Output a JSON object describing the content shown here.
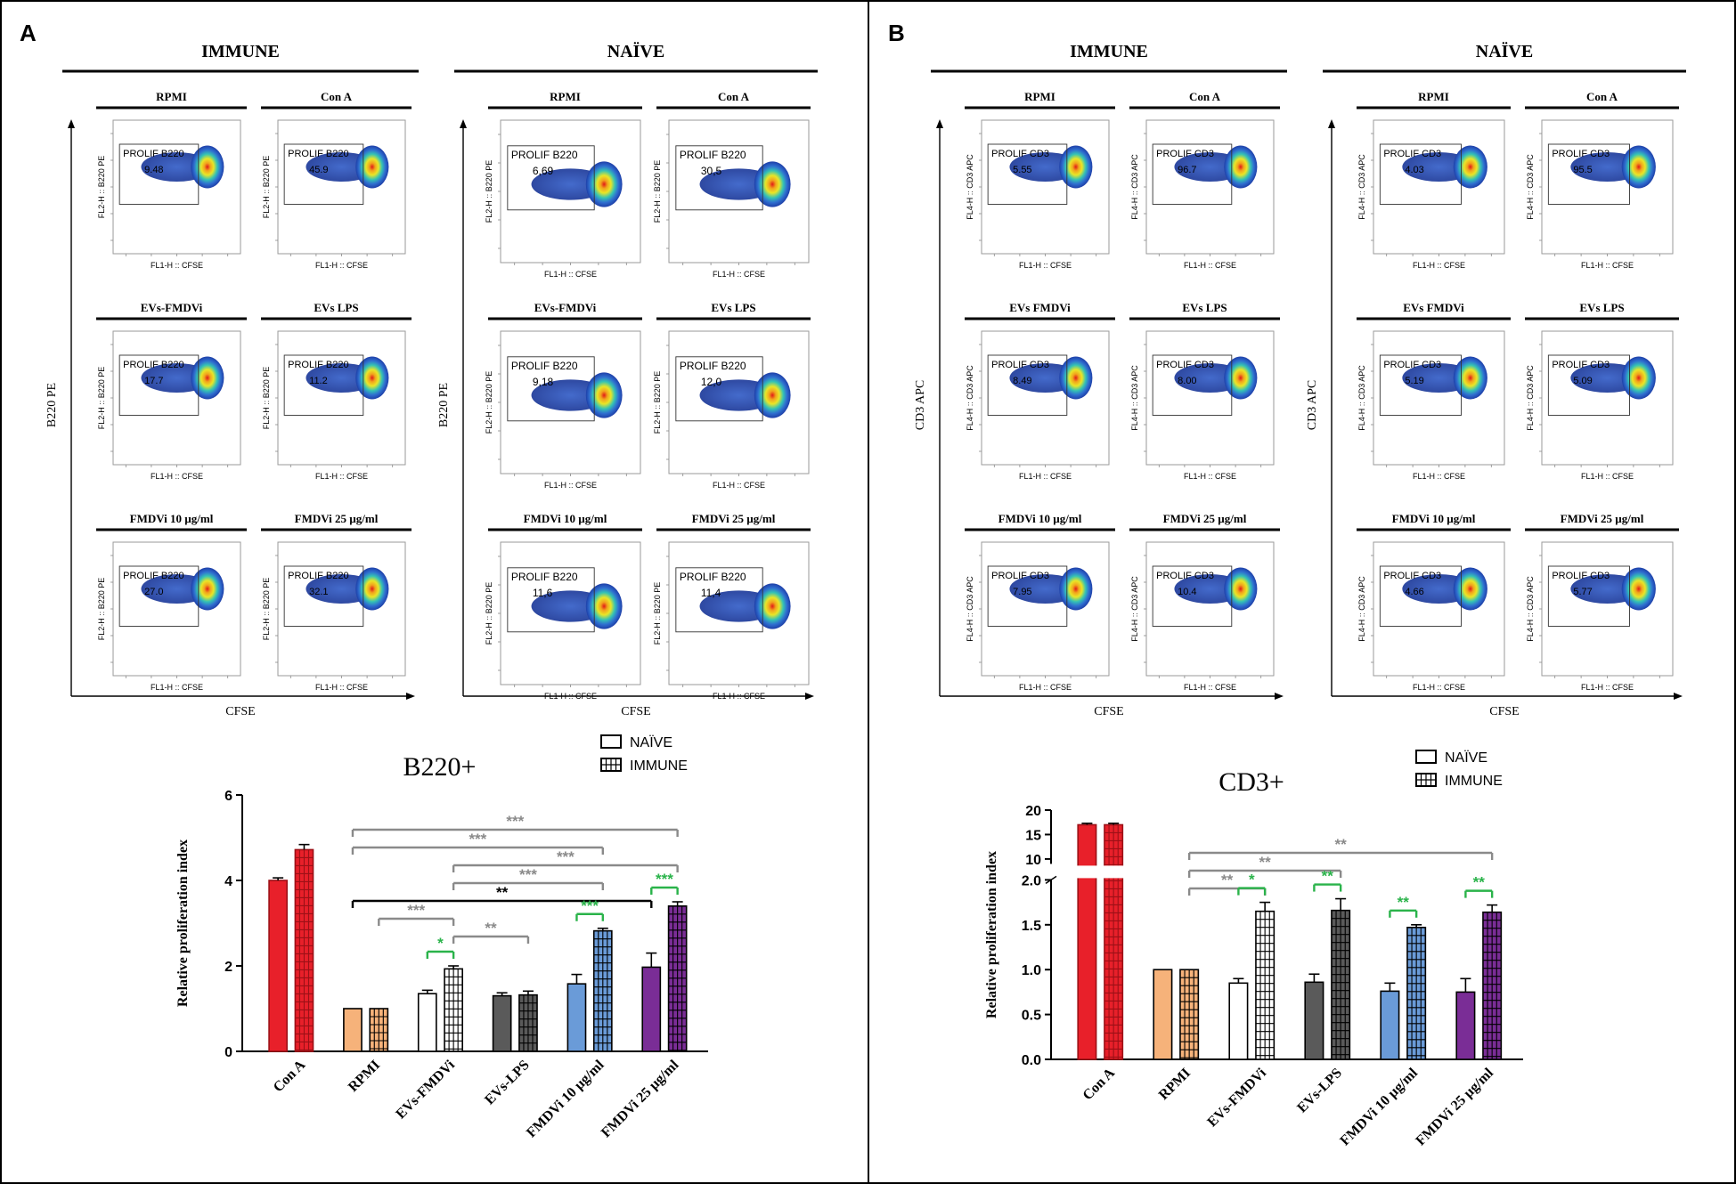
{
  "panels": [
    {
      "letter": "A",
      "groups": [
        "IMMUNE",
        "NAÏVE"
      ],
      "axis_label_y": "B220 PE",
      "axis_label_x": "CFSE",
      "immune_plots": [
        {
          "title": "RPMI",
          "gate_label": "PROLIF B220",
          "value": "9.48",
          "ylabel": "FL2-H :: B220 PE",
          "xlabel": "FL1-H :: CFSE"
        },
        {
          "title": "Con A",
          "gate_label": "PROLIF B220",
          "value": "45.9",
          "ylabel": "FL2-H :: B220 PE",
          "xlabel": "FL1-H :: CFSE"
        },
        {
          "title": "EVs-FMDVi",
          "gate_label": "PROLIF B220",
          "value": "17.7",
          "ylabel": "FL2-H :: B220 PE",
          "xlabel": "FL1-H :: CFSE"
        },
        {
          "title": "EVs LPS",
          "gate_label": "PROLIF B220",
          "value": "11.2",
          "ylabel": "FL2-H :: B220 PE",
          "xlabel": "FL1-H :: CFSE"
        },
        {
          "title": "FMDVi 10  µg/ml",
          "gate_label": "PROLIF B220",
          "value": "27.0",
          "ylabel": "FL2-H :: B220 PE",
          "xlabel": "FL1-H :: CFSE"
        },
        {
          "title": "FMDVi 25 µg/ml",
          "gate_label": "PROLIF B220",
          "value": "32.1",
          "ylabel": "FL2-H :: B220 PE",
          "xlabel": "FL1-H :: CFSE"
        }
      ],
      "naive_plots": [
        {
          "title": "RPMI",
          "gate_label": "PROLIF B220",
          "value": "6,69",
          "ylabel": "FL2-H :: B220 PE",
          "xlabel": "FL1-H :: CFSE"
        },
        {
          "title": "Con A",
          "gate_label": "PROLIF B220",
          "value": "30,5",
          "ylabel": "FL2-H :: B220 PE",
          "xlabel": "FL1-H :: CFSE"
        },
        {
          "title": "EVs-FMDVi",
          "gate_label": "PROLIF B220",
          "value": "9,18",
          "ylabel": "FL2-H :: B220 PE",
          "xlabel": "FL1-H :: CFSE"
        },
        {
          "title": "EVs LPS",
          "gate_label": "PROLIF B220",
          "value": "12,0",
          "ylabel": "FL2-H :: B220 PE",
          "xlabel": "FL1-H :: CFSE"
        },
        {
          "title": "FMDVi 10  µg/ml",
          "gate_label": "PROLIF B220",
          "value": "11,6",
          "ylabel": "FL2-H :: B220 PE",
          "xlabel": "FL1-H :: CFSE"
        },
        {
          "title": "FMDVi 25 µg/ml",
          "gate_label": "PROLIF B220",
          "value": "11,4",
          "ylabel": "FL2-H :: B220 PE",
          "xlabel": "FL1-H :: CFSE"
        }
      ]
    },
    {
      "letter": "B",
      "groups": [
        "IMMUNE",
        "NAÏVE"
      ],
      "axis_label_y": "CD3 APC",
      "axis_label_x": "CFSE",
      "immune_plots": [
        {
          "title": "RPMI",
          "gate_label": "PROLIF CD3",
          "value": "5.55",
          "ylabel": "FL4-H :: CD3 APC",
          "xlabel": "FL1-H :: CFSE"
        },
        {
          "title": "Con A",
          "gate_label": "PROLIF CD3",
          "value": "96.7",
          "ylabel": "FL4-H :: CD3 APC",
          "xlabel": "FL1-H :: CFSE"
        },
        {
          "title": "EVs FMDVi",
          "gate_label": "PROLIF CD3",
          "value": "8.49",
          "ylabel": "FL4-H :: CD3 APC",
          "xlabel": "FL1-H :: CFSE"
        },
        {
          "title": "EVs LPS",
          "gate_label": "PROLIF CD3",
          "value": "8.00",
          "ylabel": "FL4-H :: CD3 APC",
          "xlabel": "FL1-H :: CFSE"
        },
        {
          "title": "FMDVi 10  µg/ml",
          "gate_label": "PROLIF CD3",
          "value": "7.95",
          "ylabel": "FL4-H :: CD3 APC",
          "xlabel": "FL1-H :: CFSE"
        },
        {
          "title": "FMDVi 25  µg/ml",
          "gate_label": "PROLIF CD3",
          "value": "10.4",
          "ylabel": "FL4-H :: CD3 APC",
          "xlabel": "FL1-H :: CFSE"
        }
      ],
      "naive_plots": [
        {
          "title": "RPMI",
          "gate_label": "PROLIF CD3",
          "value": "4.03",
          "ylabel": "FL4-H :: CD3 APC",
          "xlabel": "FL1-H :: CFSE"
        },
        {
          "title": "Con A",
          "gate_label": "PROLIF CD3",
          "value": "95.5",
          "ylabel": "FL4-H :: CD3 APC",
          "xlabel": "FL1-H :: CFSE"
        },
        {
          "title": "EVs FMDVi",
          "gate_label": "PROLIF CD3",
          "value": "5.19",
          "ylabel": "FL4-H :: CD3 APC",
          "xlabel": "FL1-H :: CFSE"
        },
        {
          "title": "EVs LPS",
          "gate_label": "PROLIF CD3",
          "value": "5.09",
          "ylabel": "FL4-H :: CD3 APC",
          "xlabel": "FL1-H :: CFSE"
        },
        {
          "title": "FMDVi 10  µg/ml",
          "gate_label": "PROLIF CD3",
          "value": "4.66",
          "ylabel": "FL4-H :: CD3 APC",
          "xlabel": "FL1-H :: CFSE"
        },
        {
          "title": "FMDVi 25  µg/ml",
          "gate_label": "PROLIF CD3",
          "value": "5.77",
          "ylabel": "FL4-H :: CD3 APC",
          "xlabel": "FL1-H :: CFSE"
        }
      ]
    }
  ],
  "chart_data": [
    {
      "type": "bar",
      "title": "B220+",
      "ylabel": "Relative proliferation index",
      "ylim": [
        0,
        6
      ],
      "yticks": [
        "0",
        "2",
        "4",
        "6"
      ],
      "categories": [
        "Con A",
        "RPMI",
        "EVs-FMDVi",
        "EVs-LPS",
        "FMDVi 10 µg/ml",
        "FMDVi 25 µg/ml"
      ],
      "category_colors": [
        "#e8202a",
        "#f6b27a",
        "#ffffff",
        "#5a5a5a",
        "#6a9bd8",
        "#7a2d96"
      ],
      "series": [
        {
          "name": "NAÏVE",
          "pattern": "solid",
          "values": [
            4.0,
            1.0,
            1.35,
            1.3,
            1.58,
            1.97
          ],
          "errors": [
            0.06,
            0.0,
            0.08,
            0.07,
            0.22,
            0.33
          ]
        },
        {
          "name": "IMMUNE",
          "pattern": "checkered",
          "values": [
            4.72,
            1.0,
            1.93,
            1.32,
            2.82,
            3.4
          ],
          "errors": [
            0.12,
            0.0,
            0.07,
            0.09,
            0.06,
            0.1
          ]
        }
      ],
      "significance": [
        {
          "label": "***",
          "color": "#8a8a8a",
          "from": [
            1,
            0
          ],
          "to": [
            5,
            1
          ]
        },
        {
          "label": "***",
          "color": "#8a8a8a",
          "from": [
            1,
            0
          ],
          "to": [
            4,
            1
          ]
        },
        {
          "label": "***",
          "color": "#8a8a8a",
          "from": [
            2,
            1
          ],
          "to": [
            5,
            1
          ]
        },
        {
          "label": "***",
          "color": "#8a8a8a",
          "from": [
            2,
            1
          ],
          "to": [
            4,
            1
          ]
        },
        {
          "label": "**",
          "color": "#000000",
          "from": [
            1,
            0
          ],
          "to": [
            5,
            0
          ]
        },
        {
          "label": "***",
          "color": "#8a8a8a",
          "from": [
            1,
            1
          ],
          "to": [
            2,
            1
          ]
        },
        {
          "label": "**",
          "color": "#8a8a8a",
          "from": [
            2,
            1
          ],
          "to": [
            3,
            1
          ]
        },
        {
          "label": "*",
          "color": "#2ab34a",
          "from": [
            2,
            0
          ],
          "to": [
            2,
            1
          ]
        },
        {
          "label": "***",
          "color": "#2ab34a",
          "from": [
            4,
            0
          ],
          "to": [
            4,
            1
          ]
        },
        {
          "label": "***",
          "color": "#2ab34a",
          "from": [
            5,
            0
          ],
          "to": [
            5,
            1
          ]
        }
      ]
    },
    {
      "type": "bar",
      "title": "CD3+",
      "ylabel": "Relative proliferation index",
      "ylim": [
        0,
        20
      ],
      "axis_break": [
        2.0,
        9.0
      ],
      "yticks": [
        "0.0",
        "0.5",
        "1.0",
        "1.5",
        "2.0",
        "10",
        "15",
        "20"
      ],
      "categories": [
        "Con A",
        "RPMI",
        "EVs-FMDVi",
        "EVs-LPS",
        "FMDVi 10 µg/ml",
        "FMDVi 25 µg/ml"
      ],
      "category_colors": [
        "#e8202a",
        "#f6b27a",
        "#ffffff",
        "#5a5a5a",
        "#6a9bd8",
        "#7a2d96"
      ],
      "series": [
        {
          "name": "NAÏVE",
          "pattern": "solid",
          "values": [
            17.0,
            1.0,
            0.85,
            0.86,
            0.76,
            0.75
          ],
          "errors": [
            0.3,
            0.0,
            0.05,
            0.09,
            0.09,
            0.15
          ]
        },
        {
          "name": "IMMUNE",
          "pattern": "checkered",
          "values": [
            17.0,
            1.0,
            1.65,
            1.66,
            1.47,
            1.64
          ],
          "errors": [
            0.3,
            0.0,
            0.1,
            0.13,
            0.03,
            0.08
          ]
        }
      ],
      "significance": [
        {
          "label": "**",
          "color": "#8a8a8a",
          "from": [
            1,
            1
          ],
          "to": [
            5,
            1
          ]
        },
        {
          "label": "**",
          "color": "#8a8a8a",
          "from": [
            1,
            1
          ],
          "to": [
            3,
            1
          ]
        },
        {
          "label": "**",
          "color": "#8a8a8a",
          "from": [
            1,
            1
          ],
          "to": [
            2,
            1
          ]
        },
        {
          "label": "*",
          "color": "#2ab34a",
          "from": [
            2,
            0
          ],
          "to": [
            2,
            1
          ]
        },
        {
          "label": "**",
          "color": "#2ab34a",
          "from": [
            3,
            0
          ],
          "to": [
            3,
            1
          ]
        },
        {
          "label": "**",
          "color": "#2ab34a",
          "from": [
            4,
            0
          ],
          "to": [
            4,
            1
          ]
        },
        {
          "label": "**",
          "color": "#2ab34a",
          "from": [
            5,
            0
          ],
          "to": [
            5,
            1
          ]
        }
      ]
    }
  ]
}
